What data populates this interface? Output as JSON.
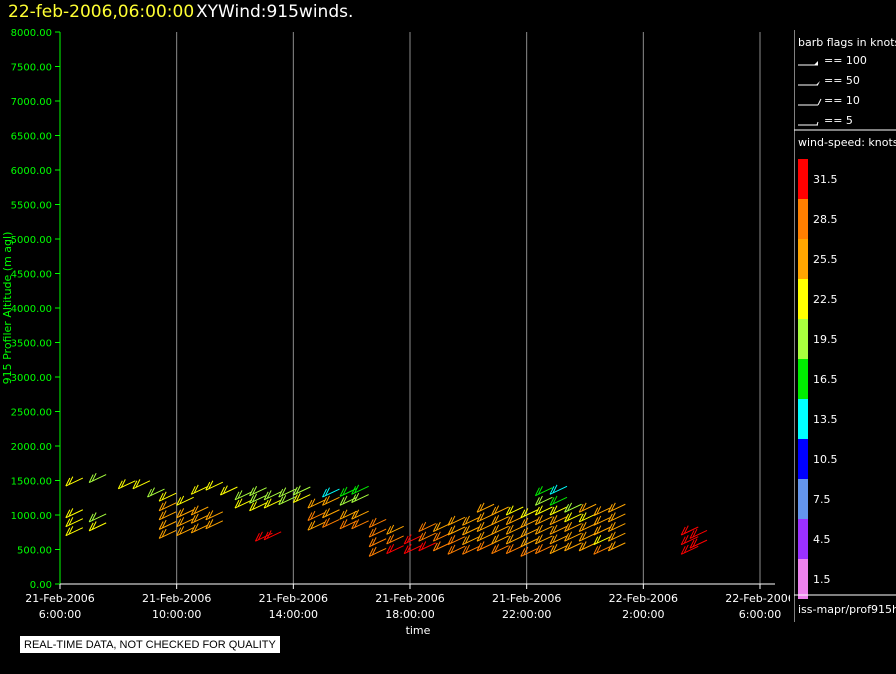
{
  "header": {
    "datetime": "22-feb-2006,06:00:00",
    "product": "XYWind:915winds."
  },
  "chart_data": {
    "type": "wind-barb",
    "ylabel": "915 Profiler Altitude (m agl)",
    "xlabel": "time",
    "ylim": [
      0,
      8000
    ],
    "yticks": [
      "0.00",
      "500.00",
      "1000.00",
      "1500.00",
      "2000.00",
      "2500.00",
      "3000.00",
      "3500.00",
      "4000.00",
      "4500.00",
      "5000.00",
      "5500.00",
      "6000.00",
      "6500.00",
      "7000.00",
      "7500.00",
      "8000.00"
    ],
    "xlim_hours": [
      0,
      24
    ],
    "xticks": [
      {
        "date": "21-Feb-2006",
        "time": "6:00:00"
      },
      {
        "date": "21-Feb-2006",
        "time": "10:00:00"
      },
      {
        "date": "21-Feb-2006",
        "time": "14:00:00"
      },
      {
        "date": "21-Feb-2006",
        "time": "18:00:00"
      },
      {
        "date": "21-Feb-2006",
        "time": "22:00:00"
      },
      {
        "date": "22-Feb-2006",
        "time": "2:00:00"
      },
      {
        "date": "22-Feb-2006",
        "time": "6:00:00"
      }
    ],
    "grid": "vertical",
    "barb_legend": {
      "title": "barb flags in knots",
      "items": [
        "== 100",
        "== 50",
        "== 10",
        "== 5"
      ]
    },
    "colorbar": {
      "title": "wind-speed: knots",
      "bins": [
        {
          "label": "31.5",
          "color": "#ff0000"
        },
        {
          "label": "28.5",
          "color": "#ff7f00"
        },
        {
          "label": "25.5",
          "color": "#ffa500"
        },
        {
          "label": "22.5",
          "color": "#ffff00"
        },
        {
          "label": "19.5",
          "color": "#a8ff3e"
        },
        {
          "label": "16.5",
          "color": "#00ee00"
        },
        {
          "label": "13.5",
          "color": "#00ffff"
        },
        {
          "label": "10.5",
          "color": "#0000ff"
        },
        {
          "label": "7.5",
          "color": "#6495ed"
        },
        {
          "label": "4.5",
          "color": "#9b30ff"
        },
        {
          "label": "1.5",
          "color": "#ee82ee"
        }
      ]
    },
    "series": [
      {
        "hour": 0.2,
        "barbs": [
          [
            700,
            21
          ],
          [
            830,
            22
          ],
          [
            960,
            21
          ],
          [
            1420,
            21
          ]
        ]
      },
      {
        "hour": 1.0,
        "barbs": [
          [
            770,
            21
          ],
          [
            900,
            20
          ],
          [
            1470,
            20
          ]
        ]
      },
      {
        "hour": 2.0,
        "barbs": [
          [
            1380,
            21
          ]
        ]
      },
      {
        "hour": 2.5,
        "barbs": [
          [
            1380,
            21
          ]
        ]
      },
      {
        "hour": 3.0,
        "barbs": [
          [
            1260,
            20
          ]
        ]
      },
      {
        "hour": 3.4,
        "barbs": [
          [
            660,
            26
          ],
          [
            790,
            26
          ],
          [
            930,
            24
          ],
          [
            1060,
            24
          ],
          [
            1200,
            21
          ]
        ]
      },
      {
        "hour": 4.0,
        "barbs": [
          [
            700,
            26
          ],
          [
            830,
            26
          ],
          [
            960,
            25
          ],
          [
            1140,
            22
          ]
        ]
      },
      {
        "hour": 4.5,
        "barbs": [
          [
            740,
            26
          ],
          [
            880,
            25
          ],
          [
            1000,
            25
          ],
          [
            1300,
            22
          ]
        ]
      },
      {
        "hour": 5.0,
        "barbs": [
          [
            800,
            26
          ],
          [
            930,
            25
          ],
          [
            1360,
            22
          ]
        ]
      },
      {
        "hour": 5.5,
        "barbs": [
          [
            1290,
            22
          ]
        ]
      },
      {
        "hour": 6.0,
        "barbs": [
          [
            1100,
            21
          ],
          [
            1220,
            19
          ]
        ]
      },
      {
        "hour": 6.5,
        "barbs": [
          [
            1060,
            21
          ],
          [
            1170,
            20
          ],
          [
            1280,
            18
          ]
        ]
      },
      {
        "hour": 6.7,
        "barbs": [
          [
            620,
            30
          ]
        ]
      },
      {
        "hour": 7.0,
        "barbs": [
          [
            640,
            30
          ],
          [
            1100,
            21
          ],
          [
            1220,
            19
          ]
        ]
      },
      {
        "hour": 7.5,
        "barbs": [
          [
            1150,
            20
          ],
          [
            1260,
            18
          ]
        ]
      },
      {
        "hour": 8.0,
        "barbs": [
          [
            1180,
            21
          ],
          [
            1290,
            19
          ]
        ]
      },
      {
        "hour": 8.5,
        "barbs": [
          [
            780,
            26
          ],
          [
            920,
            27
          ],
          [
            1100,
            24
          ]
        ]
      },
      {
        "hour": 9.0,
        "barbs": [
          [
            820,
            27
          ],
          [
            960,
            26
          ],
          [
            1140,
            24
          ],
          [
            1260,
            13
          ]
        ]
      },
      {
        "hour": 9.6,
        "barbs": [
          [
            800,
            27
          ],
          [
            940,
            26
          ],
          [
            1140,
            20
          ],
          [
            1270,
            17
          ]
        ]
      },
      {
        "hour": 10.0,
        "barbs": [
          [
            800,
            27
          ],
          [
            940,
            26
          ],
          [
            1180,
            19
          ],
          [
            1300,
            17
          ]
        ]
      },
      {
        "hour": 10.6,
        "barbs": [
          [
            400,
            27
          ],
          [
            540,
            27
          ],
          [
            680,
            27
          ],
          [
            820,
            27
          ]
        ]
      },
      {
        "hour": 11.2,
        "barbs": [
          [
            440,
            30
          ],
          [
            580,
            27
          ],
          [
            720,
            26
          ]
        ]
      },
      {
        "hour": 11.8,
        "barbs": [
          [
            440,
            30
          ],
          [
            580,
            31
          ]
        ]
      },
      {
        "hour": 12.3,
        "barbs": [
          [
            480,
            31
          ],
          [
            620,
            28
          ],
          [
            760,
            27
          ]
        ]
      },
      {
        "hour": 12.8,
        "barbs": [
          [
            480,
            28
          ],
          [
            620,
            27
          ],
          [
            760,
            26
          ]
        ]
      },
      {
        "hour": 13.3,
        "barbs": [
          [
            430,
            28
          ],
          [
            570,
            27
          ],
          [
            710,
            26
          ],
          [
            850,
            26
          ]
        ]
      },
      {
        "hour": 13.8,
        "barbs": [
          [
            430,
            27
          ],
          [
            570,
            26
          ],
          [
            710,
            25
          ],
          [
            850,
            24
          ]
        ]
      },
      {
        "hour": 14.3,
        "barbs": [
          [
            480,
            28
          ],
          [
            620,
            26
          ],
          [
            760,
            25
          ],
          [
            900,
            25
          ],
          [
            1040,
            24
          ]
        ]
      },
      {
        "hour": 14.8,
        "barbs": [
          [
            440,
            28
          ],
          [
            580,
            26
          ],
          [
            720,
            25
          ],
          [
            860,
            25
          ],
          [
            1000,
            24
          ]
        ]
      },
      {
        "hour": 15.3,
        "barbs": [
          [
            440,
            28
          ],
          [
            580,
            26
          ],
          [
            720,
            25
          ],
          [
            860,
            24
          ],
          [
            1000,
            23
          ]
        ]
      },
      {
        "hour": 15.8,
        "barbs": [
          [
            400,
            27
          ],
          [
            540,
            26
          ],
          [
            680,
            25
          ],
          [
            820,
            24
          ],
          [
            960,
            23
          ]
        ]
      },
      {
        "hour": 16.3,
        "barbs": [
          [
            440,
            27
          ],
          [
            580,
            26
          ],
          [
            720,
            25
          ],
          [
            860,
            24
          ],
          [
            1000,
            23
          ],
          [
            1140,
            18
          ],
          [
            1280,
            17
          ]
        ]
      },
      {
        "hour": 16.8,
        "barbs": [
          [
            440,
            26
          ],
          [
            580,
            25
          ],
          [
            720,
            24
          ],
          [
            860,
            24
          ],
          [
            1000,
            21
          ],
          [
            1140,
            17
          ],
          [
            1300,
            13
          ]
        ]
      },
      {
        "hour": 17.3,
        "barbs": [
          [
            480,
            26
          ],
          [
            620,
            25
          ],
          [
            760,
            24
          ],
          [
            900,
            21
          ],
          [
            1040,
            20
          ]
        ]
      },
      {
        "hour": 17.8,
        "barbs": [
          [
            480,
            26
          ],
          [
            620,
            25
          ],
          [
            760,
            24
          ],
          [
            900,
            23
          ],
          [
            1040,
            24
          ]
        ]
      },
      {
        "hour": 18.3,
        "barbs": [
          [
            430,
            27
          ],
          [
            570,
            21
          ],
          [
            710,
            24
          ],
          [
            850,
            24
          ],
          [
            990,
            24
          ]
        ]
      },
      {
        "hour": 18.8,
        "barbs": [
          [
            480,
            26
          ],
          [
            620,
            25
          ],
          [
            760,
            25
          ],
          [
            900,
            24
          ],
          [
            1040,
            24
          ]
        ]
      },
      {
        "hour": 21.3,
        "barbs": [
          [
            430,
            31
          ],
          [
            570,
            31
          ],
          [
            710,
            31
          ]
        ]
      },
      {
        "hour": 21.6,
        "barbs": [
          [
            520,
            31
          ],
          [
            660,
            31
          ]
        ]
      }
    ]
  },
  "footer": {
    "source": "iss-mapr/prof915h",
    "disclaimer": "REAL-TIME DATA, NOT CHECKED FOR QUALITY"
  }
}
